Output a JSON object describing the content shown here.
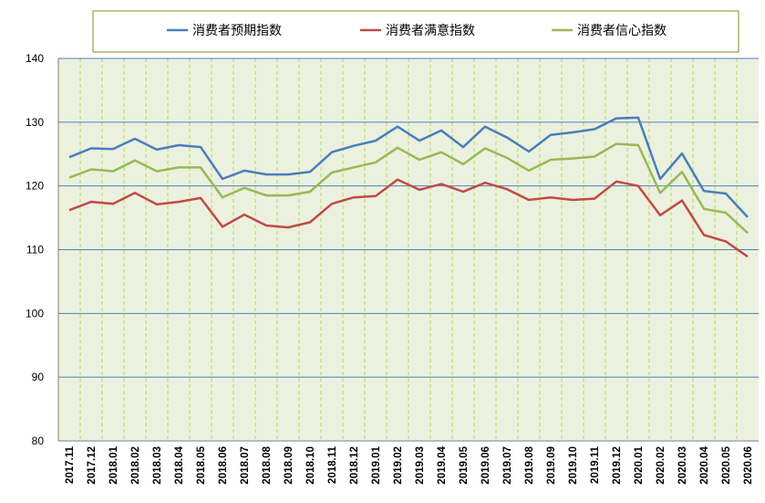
{
  "chart_data": {
    "type": "line",
    "title": "",
    "xlabel": "",
    "ylabel": "",
    "ylim": [
      80,
      140
    ],
    "yticks": [
      80,
      90,
      100,
      110,
      120,
      130,
      140
    ],
    "grid": "horizontal solid blue lines, vertical dashed green lines",
    "legend_position": "top",
    "categories": [
      "2017.11",
      "2017.12",
      "2018.01",
      "2018.02",
      "2018.03",
      "2018.04",
      "2018.05",
      "2018.06",
      "2018.07",
      "2018.08",
      "2018.09",
      "2018.10",
      "2018.11",
      "2018.12",
      "2019.01",
      "2019.02",
      "2019.03",
      "2019.04",
      "2019.05",
      "2019.06",
      "2019.07",
      "2019.08",
      "2019.09",
      "2019.10",
      "2019.11",
      "2019.12",
      "2020.01",
      "2020.02",
      "2020.03",
      "2020.04",
      "2020.05",
      "2020.06"
    ],
    "series": [
      {
        "name": "消费者预期指数",
        "color": "#4a7ebb",
        "values": [
          124.5,
          125.9,
          125.8,
          127.4,
          125.7,
          126.4,
          126.1,
          121.1,
          122.4,
          121.8,
          121.8,
          122.2,
          125.3,
          126.3,
          127.1,
          129.3,
          127.1,
          128.7,
          126.1,
          129.3,
          127.6,
          125.4,
          128.0,
          128.4,
          128.9,
          130.6,
          130.7,
          121.1,
          125.1,
          119.2,
          118.8,
          115.1
        ]
      },
      {
        "name": "消费者满意指数",
        "color": "#be4b48",
        "values": [
          116.2,
          117.5,
          117.2,
          118.9,
          117.1,
          117.5,
          118.1,
          113.6,
          115.5,
          113.8,
          113.5,
          114.3,
          117.2,
          118.2,
          118.4,
          121.0,
          119.4,
          120.3,
          119.1,
          120.5,
          119.5,
          117.8,
          118.2,
          117.8,
          118.0,
          120.7,
          120.0,
          115.4,
          117.7,
          112.3,
          111.3,
          108.9
        ]
      },
      {
        "name": "消费者信心指数",
        "color": "#98b954",
        "values": [
          121.3,
          122.6,
          122.3,
          124.0,
          122.3,
          122.9,
          122.9,
          118.2,
          119.7,
          118.5,
          118.5,
          119.1,
          122.1,
          122.9,
          123.7,
          126.0,
          124.1,
          125.3,
          123.4,
          125.9,
          124.4,
          122.4,
          124.1,
          124.3,
          124.6,
          126.6,
          126.4,
          118.9,
          122.2,
          116.4,
          115.8,
          112.6
        ]
      }
    ]
  }
}
